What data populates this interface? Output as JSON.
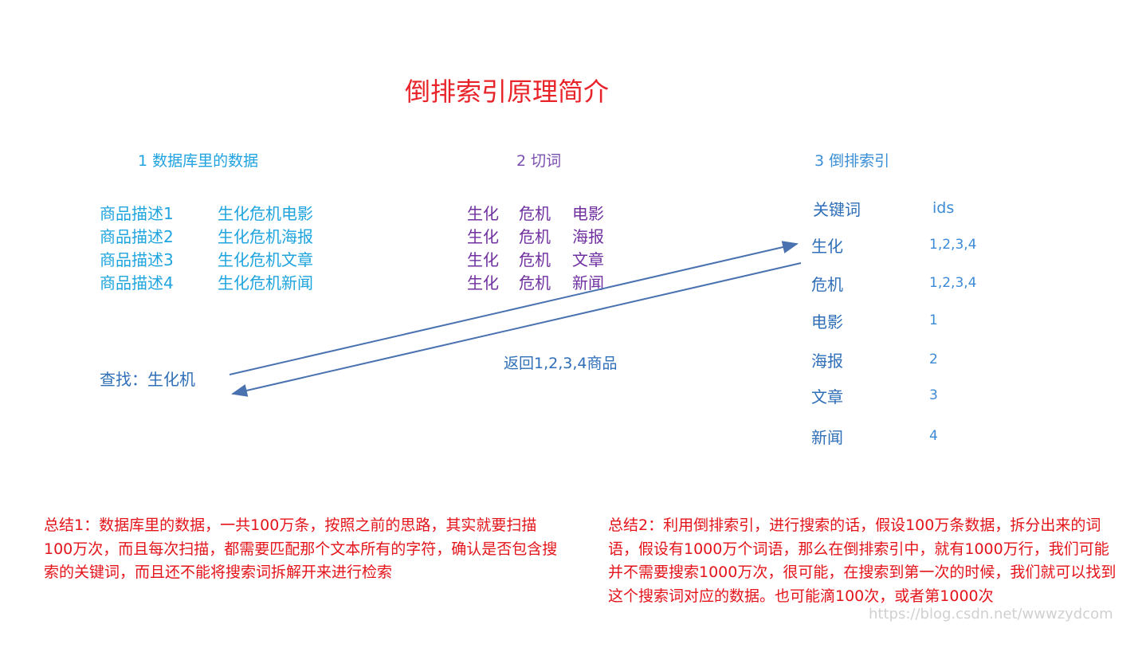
{
  "title": "倒排索引原理简介",
  "section1": {
    "heading": "1 数据库里的数据",
    "rows": [
      {
        "label": "商品描述1",
        "value": "生化危机电影"
      },
      {
        "label": "商品描述2",
        "value": "生化危机海报"
      },
      {
        "label": "商品描述3",
        "value": "生化危机文章"
      },
      {
        "label": "商品描述4",
        "value": "生化危机新闻"
      }
    ]
  },
  "section2": {
    "heading": "2 切词",
    "rows": [
      [
        "生化",
        "危机",
        "电影"
      ],
      [
        "生化",
        "危机",
        "海报"
      ],
      [
        "生化",
        "危机",
        "文章"
      ],
      [
        "生化",
        "危机",
        "新闻"
      ]
    ]
  },
  "section3": {
    "heading": "3 倒排索引",
    "col_keyword": "关键词",
    "col_ids": "ids",
    "rows": [
      {
        "keyword": "生化",
        "ids": "1,2,3,4"
      },
      {
        "keyword": "危机",
        "ids": "1,2,3,4"
      },
      {
        "keyword": "电影",
        "ids": "1"
      },
      {
        "keyword": "海报",
        "ids": "2"
      },
      {
        "keyword": "文章",
        "ids": "3"
      },
      {
        "keyword": "新闻",
        "ids": "4"
      }
    ]
  },
  "query": "查找：生化机",
  "return_label": "返回1,2,3,4商品",
  "summary1": "总结1：数据库里的数据，一共100万条，按照之前的思路，其实就要扫描100万次，而且每次扫描，都需要匹配那个文本所有的字符，确认是否包含搜索的关键词，而且还不能将搜索词拆解开来进行检索",
  "summary2": "总结2：利用倒排索引，进行搜索的话，假设100万条数据，拆分出来的词语，假设有1000万个词语，那么在倒排索引中，就有1000万行，我们可能并不需要搜索1000万次，很可能，在搜索到第一次的时候，我们就可以找到这个搜索词对应的数据。也可能滴100次，或者第1000次",
  "watermark": "https://blog.csdn.net/wwwzydcom",
  "colors": {
    "title": "#e8242a",
    "summary": "#e4141b",
    "arrow": "#4a72b0",
    "cut_words": "#7030a0"
  }
}
